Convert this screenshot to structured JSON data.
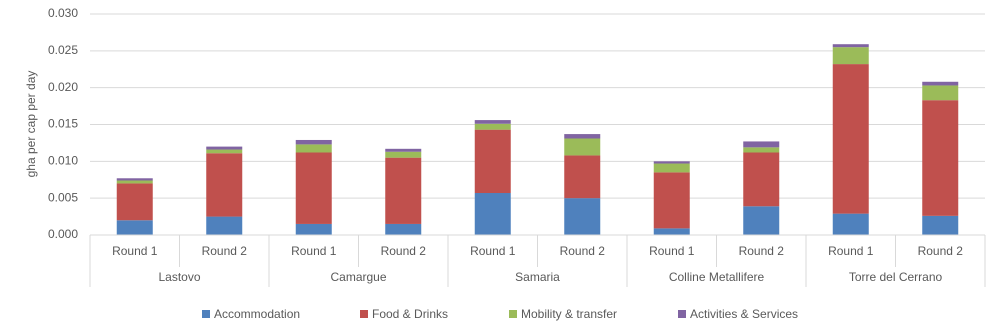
{
  "chart_data": {
    "type": "stacked-bar",
    "y_label": "gha per cap per day",
    "categories": [
      "Round 1",
      "Round 2",
      "Round 1",
      "Round 2",
      "Round 1",
      "Round 2",
      "Round 1",
      "Round 2",
      "Round 1",
      "Round 2"
    ],
    "groups": [
      "Lastovo",
      "Camargue",
      "Samaria",
      "Colline Metallifere",
      "Torre del Cerrano"
    ],
    "series": [
      {
        "name": "Accommodation",
        "color": "#4f81bd",
        "values": [
          0.002,
          0.0025,
          0.0015,
          0.0015,
          0.0057,
          0.005,
          0.0009,
          0.0039,
          0.0029,
          0.0026
        ]
      },
      {
        "name": "Food & Drinks",
        "color": "#c0504d",
        "values": [
          0.005,
          0.0086,
          0.0097,
          0.009,
          0.0086,
          0.0058,
          0.0076,
          0.0073,
          0.0203,
          0.0157
        ]
      },
      {
        "name": "Mobility & transfer",
        "color": "#9bbb59",
        "values": [
          0.0004,
          0.0005,
          0.0011,
          0.0008,
          0.0008,
          0.0023,
          0.0012,
          0.0007,
          0.0023,
          0.002
        ]
      },
      {
        "name": "Activities & Services",
        "color": "#8064a2",
        "values": [
          0.0003,
          0.0004,
          0.0006,
          0.0004,
          0.0005,
          0.0006,
          0.0003,
          0.0008,
          0.0004,
          0.0005
        ]
      }
    ],
    "ylim": [
      0,
      0.03
    ],
    "yticks": [
      {
        "value": 0,
        "label": "0.000"
      },
      {
        "value": 0.005,
        "label": "0.005"
      },
      {
        "value": 0.01,
        "label": "0.010"
      },
      {
        "value": 0.015,
        "label": "0.015"
      },
      {
        "value": 0.02,
        "label": "0.020"
      },
      {
        "value": 0.025,
        "label": "0.025"
      },
      {
        "value": 0.03,
        "label": "0.030"
      }
    ],
    "grid": true,
    "legend": "bottom"
  }
}
